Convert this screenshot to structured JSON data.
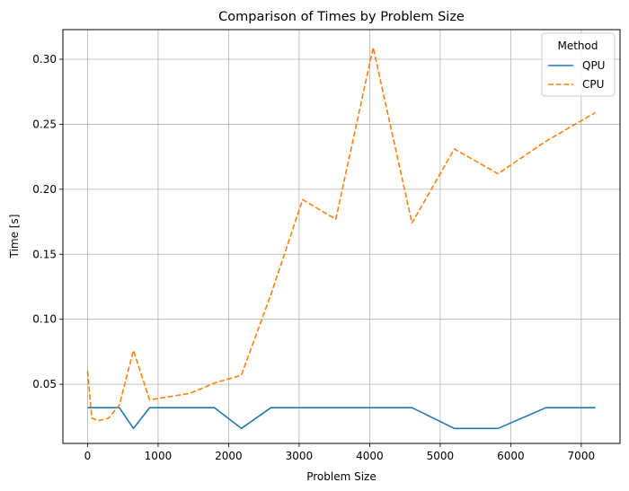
{
  "chart_data": {
    "type": "line",
    "title": "Comparison of Times by Problem Size",
    "xlabel": "Problem Size",
    "ylabel": "Time [s]",
    "xlim": [
      -350,
      7550
    ],
    "ylim": [
      0.0045,
      0.3228
    ],
    "x_ticks": [
      0,
      1000,
      2000,
      3000,
      4000,
      5000,
      6000,
      7000
    ],
    "x_tick_labels": [
      "0",
      "1000",
      "2000",
      "3000",
      "4000",
      "5000",
      "6000",
      "7000"
    ],
    "y_ticks": [
      0.05,
      0.1,
      0.15,
      0.2,
      0.25,
      0.3
    ],
    "y_tick_labels": [
      "0.05",
      "0.10",
      "0.15",
      "0.20",
      "0.25",
      "0.30"
    ],
    "grid": true,
    "legend": {
      "title": "Method",
      "position": "top-right"
    },
    "series": [
      {
        "name": "QPU",
        "color": "#1f77b4",
        "dash": "solid",
        "x": [
          0,
          450,
          650,
          880,
          1800,
          2180,
          2600,
          4600,
          5200,
          5820,
          6500,
          7200
        ],
        "y": [
          0.032,
          0.032,
          0.016,
          0.032,
          0.032,
          0.016,
          0.032,
          0.032,
          0.016,
          0.016,
          0.032,
          0.032
        ]
      },
      {
        "name": "CPU",
        "color": "#ff7f0e",
        "dash": "dashed",
        "x": [
          0,
          60,
          150,
          300,
          450,
          650,
          880,
          1450,
          1800,
          2180,
          2600,
          3050,
          3520,
          4050,
          4600,
          5200,
          5820,
          6500,
          7200
        ],
        "y": [
          0.06,
          0.024,
          0.022,
          0.024,
          0.034,
          0.076,
          0.038,
          0.043,
          0.051,
          0.057,
          0.119,
          0.192,
          0.177,
          0.309,
          0.174,
          0.231,
          0.212,
          0.237,
          0.259
        ]
      }
    ]
  }
}
